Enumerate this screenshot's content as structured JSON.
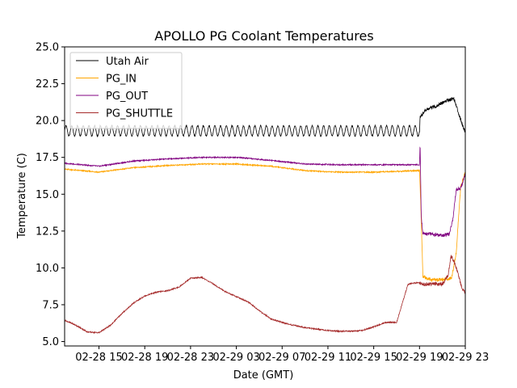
{
  "chart_data": {
    "type": "line",
    "title": "APOLLO PG Coolant Temperatures",
    "xlabel": "Date (GMT)",
    "ylabel": "Temperature (C)",
    "xlim": [
      12.0,
      47.0
    ],
    "ylim": [
      4.7,
      25.0
    ],
    "x_unit": "hours since 02-28 00:00 GMT",
    "yticks": [
      5.0,
      7.5,
      10.0,
      12.5,
      15.0,
      17.5,
      20.0,
      22.5,
      25.0
    ],
    "ytick_labels": [
      "5.0",
      "7.5",
      "10.0",
      "12.5",
      "15.0",
      "17.5",
      "20.0",
      "22.5",
      "25.0"
    ],
    "xticks": [
      15,
      19,
      23,
      27,
      31,
      35,
      39,
      43,
      47
    ],
    "xtick_labels": [
      "02-28 15",
      "02-28 19",
      "02-28 23",
      "02-29 03",
      "02-29 07",
      "02-29 11",
      "02-29 15",
      "02-29 19",
      "02-29 23"
    ],
    "legend_position": "top-left",
    "series": [
      {
        "name": "Utah Air",
        "color": "#000000",
        "x": [
          12.0,
          43.0,
          43.05,
          43.5,
          44.5,
          45.5,
          46.0,
          46.5,
          46.8,
          47.0
        ],
        "y": [
          19.3,
          19.3,
          20.2,
          20.7,
          21.0,
          21.4,
          21.5,
          20.3,
          19.6,
          19.2
        ],
        "oscillation": 0.35
      },
      {
        "name": "PG_IN",
        "color": "#ffa500",
        "x": [
          12.0,
          15.0,
          18.0,
          21.0,
          24.0,
          27.0,
          30.0,
          33.0,
          36.0,
          39.0,
          43.0,
          43.1,
          43.3,
          44.0,
          45.0,
          45.8,
          46.2,
          46.6,
          47.0
        ],
        "y": [
          16.7,
          16.5,
          16.8,
          16.95,
          17.05,
          17.05,
          16.9,
          16.6,
          16.5,
          16.5,
          16.6,
          14.5,
          9.4,
          9.2,
          9.2,
          9.3,
          11.0,
          15.5,
          16.5
        ]
      },
      {
        "name": "PG_OUT",
        "color": "#800080",
        "x": [
          12.0,
          15.0,
          18.0,
          21.0,
          24.0,
          27.0,
          30.0,
          33.0,
          36.0,
          39.0,
          43.0,
          43.05,
          43.15,
          43.3,
          44.0,
          45.0,
          45.6,
          45.9,
          46.2,
          46.6,
          47.0
        ],
        "y": [
          17.1,
          16.9,
          17.25,
          17.4,
          17.5,
          17.5,
          17.3,
          17.05,
          17.0,
          17.0,
          17.0,
          18.6,
          13.5,
          12.3,
          12.3,
          12.2,
          12.3,
          13.2,
          15.3,
          15.4,
          16.4
        ]
      },
      {
        "name": "PG_SHUTTLE",
        "color": "#a52a2a",
        "x": [
          12.0,
          13.0,
          14.0,
          15.0,
          16.0,
          17.0,
          18.0,
          19.0,
          20.0,
          21.0,
          22.0,
          23.0,
          24.0,
          25.0,
          26.0,
          27.0,
          28.0,
          29.0,
          30.0,
          31.0,
          32.0,
          33.0,
          34.0,
          35.0,
          36.0,
          37.0,
          38.0,
          39.0,
          40.0,
          41.0,
          42.0,
          42.8,
          43.0,
          43.1,
          43.3,
          44.0,
          45.0,
          45.5,
          45.75,
          46.0,
          46.3,
          46.7,
          47.0
        ],
        "y": [
          6.45,
          6.1,
          5.65,
          5.6,
          6.1,
          6.9,
          7.6,
          8.1,
          8.35,
          8.45,
          8.7,
          9.3,
          9.35,
          8.9,
          8.4,
          8.05,
          7.7,
          7.1,
          6.55,
          6.3,
          6.1,
          5.95,
          5.85,
          5.75,
          5.7,
          5.7,
          5.75,
          6.0,
          6.3,
          6.3,
          8.9,
          9.0,
          8.95,
          8.9,
          8.9,
          8.9,
          8.9,
          9.5,
          10.8,
          10.5,
          9.8,
          8.6,
          8.3
        ]
      }
    ]
  }
}
